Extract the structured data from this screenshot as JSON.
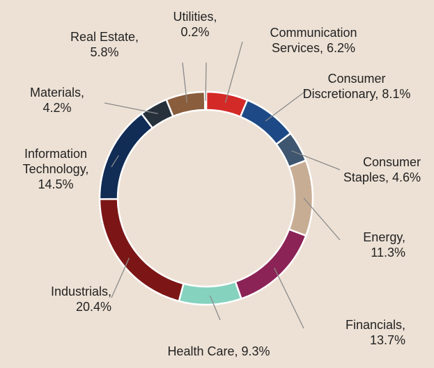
{
  "chart_data": {
    "type": "donut",
    "categories": [
      "Communication Services,",
      "Consumer Discretionary,",
      "Consumer Staples,",
      "Energy,",
      "Financials,",
      "Health Care,",
      "Industrials,",
      "Information Technology,",
      "Materials,",
      "Real Estate,",
      "Utilities,"
    ],
    "values": [
      6.2,
      8.1,
      4.6,
      11.3,
      13.7,
      9.3,
      20.4,
      14.5,
      4.2,
      5.8,
      0.2
    ],
    "value_labels": [
      "6.2%",
      "8.1%",
      "4.6%",
      "11.3%",
      "13.7%",
      "9.3%",
      "20.4%",
      "14.5%",
      "4.2%",
      "5.8%",
      "0.2%"
    ],
    "colors": [
      "#d42a27",
      "#1d4a86",
      "#3e5670",
      "#c8ad95",
      "#8b2356",
      "#85d2bf",
      "#7c1616",
      "#112c55",
      "#27313c",
      "#8a5d3c",
      "#9a9a9a"
    ]
  }
}
